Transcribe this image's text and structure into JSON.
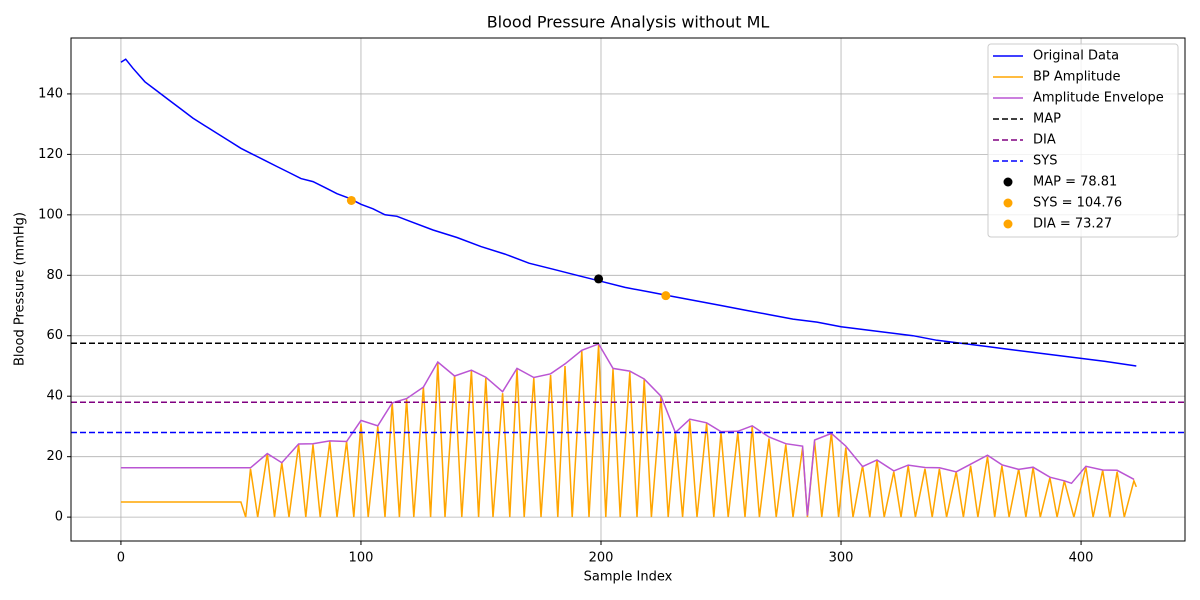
{
  "chart_data": {
    "type": "line",
    "title": "Blood Pressure Analysis without ML",
    "xlabel": "Sample Index",
    "ylabel": "Blood Pressure (mmHg)",
    "xlim": [
      -20.8,
      443.3
    ],
    "ylim": [
      -7.9,
      158.5
    ],
    "xticks": [
      0,
      100,
      200,
      300,
      400
    ],
    "yticks": [
      0,
      20,
      40,
      60,
      80,
      100,
      120,
      140
    ],
    "grid": true,
    "legend": "upper right",
    "series": [
      {
        "name": "Original Data",
        "kind": "line",
        "color": "#0000ff",
        "x": [
          0,
          2,
          5,
          10,
          15,
          20,
          25,
          30,
          35,
          40,
          45,
          50,
          55,
          60,
          65,
          70,
          75,
          80,
          85,
          90,
          95,
          100,
          105,
          110,
          115,
          120,
          130,
          140,
          150,
          160,
          170,
          180,
          190,
          200,
          210,
          220,
          230,
          240,
          250,
          260,
          270,
          280,
          290,
          300,
          310,
          320,
          330,
          340,
          350,
          360,
          370,
          380,
          390,
          400,
          410,
          423
        ],
        "values": [
          150.5,
          151.5,
          148.5,
          144,
          141,
          138,
          135,
          132,
          129.5,
          127,
          124.5,
          122,
          120,
          118,
          116,
          114,
          112,
          111,
          109,
          107,
          105.5,
          103.5,
          102,
          100,
          99.5,
          98,
          95,
          92.5,
          89.5,
          87,
          84,
          82,
          80,
          78,
          76,
          74.5,
          73,
          71.5,
          70,
          68.5,
          67,
          65.5,
          64.5,
          63,
          62,
          61,
          60,
          58.5,
          57.5,
          56.5,
          55.5,
          54.5,
          53.5,
          52.5,
          51.5,
          50
        ]
      },
      {
        "name": "BP Amplitude",
        "kind": "line",
        "color": "#ffa500",
        "x": [
          0,
          50,
          52,
          54,
          57,
          61,
          64,
          67,
          70,
          74,
          77,
          80,
          83,
          87,
          90,
          94,
          97,
          100,
          103,
          107,
          110,
          113,
          116,
          119,
          122,
          126,
          129,
          132,
          135,
          139,
          142,
          146,
          149,
          152,
          155,
          159,
          162,
          165,
          168,
          172,
          175,
          179,
          182,
          185,
          188,
          192,
          195,
          199,
          202,
          205,
          208,
          212,
          215,
          218,
          221,
          225,
          228,
          231,
          234,
          237,
          240,
          244,
          247,
          250,
          253,
          257,
          260,
          263,
          266,
          270,
          273,
          277,
          280,
          284,
          286,
          289,
          292,
          296,
          299,
          302,
          305,
          309,
          312,
          315,
          318,
          322,
          325,
          328,
          331,
          335,
          338,
          341,
          344,
          348,
          351,
          354,
          357,
          361,
          364,
          367,
          370,
          374,
          377,
          380,
          383,
          387,
          390,
          393,
          397,
          402,
          405,
          409,
          412,
          415,
          418,
          422,
          423
        ],
        "values": [
          5,
          5,
          0,
          16,
          0,
          21,
          0,
          18,
          0,
          24,
          0,
          24,
          0,
          25,
          0,
          25,
          0,
          31,
          0,
          30,
          0,
          38,
          0,
          39,
          0,
          43,
          0,
          51,
          0,
          47,
          0,
          48.5,
          0,
          46,
          0,
          41,
          0,
          49,
          0,
          46,
          0,
          47,
          0,
          50,
          0,
          55,
          0,
          57,
          0,
          49,
          0,
          48,
          0,
          45.5,
          0,
          40,
          0,
          28,
          0,
          32,
          0,
          31,
          0,
          28,
          0,
          28,
          0,
          30,
          0,
          26,
          0,
          24,
          0,
          23,
          0,
          25,
          0,
          28,
          0,
          23,
          0,
          17,
          0,
          19,
          0,
          15,
          0,
          17,
          0,
          16,
          0,
          16,
          0,
          15,
          0,
          17,
          0,
          20,
          0,
          17,
          0,
          16,
          0,
          16.5,
          0,
          13,
          0,
          12,
          0,
          16.5,
          0,
          15.5,
          0,
          15,
          0,
          12,
          10
        ]
      },
      {
        "name": "Amplitude Envelope",
        "kind": "line",
        "color": "#ba55d3",
        "x": [
          0,
          54,
          61,
          67,
          74,
          80,
          87,
          94,
          100,
          107,
          113,
          119,
          126,
          132,
          139,
          146,
          152,
          159,
          165,
          172,
          179,
          185,
          192,
          199,
          205,
          212,
          218,
          225,
          231,
          237,
          244,
          250,
          257,
          263,
          270,
          277,
          284,
          286,
          289,
          296,
          302,
          309,
          315,
          322,
          328,
          335,
          341,
          348,
          354,
          361,
          367,
          374,
          380,
          387,
          393,
          396,
          402,
          409,
          415,
          422
        ],
        "values": [
          16.3,
          16.3,
          21,
          18,
          24.2,
          24.3,
          25.2,
          25,
          32,
          30.2,
          37.8,
          39.2,
          43,
          51.3,
          46.7,
          48.6,
          46.3,
          41.5,
          49.2,
          46.2,
          47.4,
          50.7,
          55.2,
          57.3,
          49.2,
          48.3,
          45.7,
          40,
          28,
          32.4,
          31.2,
          28.3,
          28.4,
          30.2,
          26.5,
          24.3,
          23.5,
          0.5,
          25.5,
          27.7,
          23.5,
          16.7,
          18.9,
          15.3,
          17.2,
          16.4,
          16.3,
          15,
          17.5,
          20.5,
          17.3,
          15.8,
          16.5,
          13.2,
          12,
          11.2,
          16.8,
          15.6,
          15.5,
          12.5
        ]
      },
      {
        "name": "MAP",
        "kind": "hline",
        "color": "#000000",
        "y": 57.5
      },
      {
        "name": "DIA",
        "kind": "hline",
        "color": "#800080",
        "y": 38
      },
      {
        "name": "SYS",
        "kind": "hline",
        "color": "#0000ff",
        "y": 28
      },
      {
        "name": "MAP = 78.81",
        "kind": "point",
        "color": "#000000",
        "x": 199,
        "y": 78.81
      },
      {
        "name": "SYS = 104.76",
        "kind": "point",
        "color": "#ffa500",
        "x": 96,
        "y": 104.76
      },
      {
        "name": "DIA = 73.27",
        "kind": "point",
        "color": "#ffa500",
        "x": 227,
        "y": 73.27
      }
    ]
  }
}
